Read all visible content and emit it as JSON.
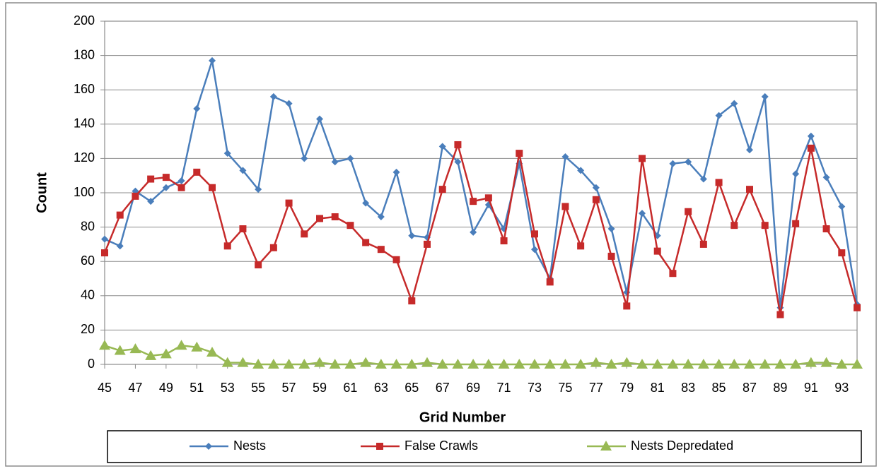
{
  "chart_data": {
    "type": "line",
    "x_label": "Grid Number",
    "y_label": "Count",
    "x": [
      45,
      46,
      47,
      48,
      49,
      50,
      51,
      52,
      53,
      54,
      55,
      56,
      57,
      58,
      59,
      60,
      61,
      62,
      63,
      64,
      65,
      66,
      67,
      68,
      69,
      70,
      71,
      72,
      73,
      74,
      75,
      76,
      77,
      78,
      79,
      80,
      81,
      82,
      83,
      84,
      85,
      86,
      87,
      88,
      89,
      90,
      91,
      92,
      93,
      94
    ],
    "xlim": [
      45,
      94
    ],
    "xticks": [
      45,
      47,
      49,
      51,
      53,
      55,
      57,
      59,
      61,
      63,
      65,
      67,
      69,
      71,
      73,
      75,
      77,
      79,
      81,
      83,
      85,
      87,
      89,
      91,
      93
    ],
    "ylim": [
      0,
      200
    ],
    "yticks": [
      0,
      20,
      40,
      60,
      80,
      100,
      120,
      140,
      160,
      180,
      200
    ],
    "grid": true,
    "legend": "bottom",
    "series": [
      {
        "name": "Nests",
        "color": "#4a7ebb",
        "marker": "diamond",
        "values": [
          73,
          69,
          101,
          95,
          103,
          107,
          149,
          177,
          123,
          113,
          102,
          156,
          152,
          120,
          143,
          118,
          120,
          94,
          86,
          112,
          75,
          74,
          127,
          118,
          77,
          93,
          79,
          117,
          67,
          50,
          121,
          113,
          103,
          79,
          42,
          88,
          75,
          117,
          118,
          108,
          145,
          152,
          125,
          156,
          33,
          111,
          133,
          109,
          92,
          35
        ]
      },
      {
        "name": "False Crawls",
        "color": "#c62a2a",
        "marker": "square",
        "values": [
          65,
          87,
          98,
          108,
          109,
          103,
          112,
          103,
          69,
          79,
          58,
          68,
          94,
          76,
          85,
          86,
          81,
          71,
          67,
          61,
          37,
          70,
          102,
          128,
          95,
          97,
          72,
          123,
          76,
          48,
          92,
          69,
          96,
          63,
          34,
          120,
          66,
          53,
          89,
          70,
          106,
          81,
          102,
          81,
          29,
          82,
          126,
          79,
          65,
          33
        ]
      },
      {
        "name": "Nests Depredated",
        "color": "#98b954",
        "marker": "triangle",
        "values": [
          11,
          8,
          9,
          5,
          6,
          11,
          10,
          7,
          1,
          1,
          0,
          0,
          0,
          0,
          1,
          0,
          0,
          1,
          0,
          0,
          0,
          1,
          0,
          0,
          0,
          0,
          0,
          0,
          0,
          0,
          0,
          0,
          1,
          0,
          1,
          0,
          0,
          0,
          0,
          0,
          0,
          0,
          0,
          0,
          0,
          0,
          1,
          1,
          0,
          0
        ]
      }
    ]
  }
}
